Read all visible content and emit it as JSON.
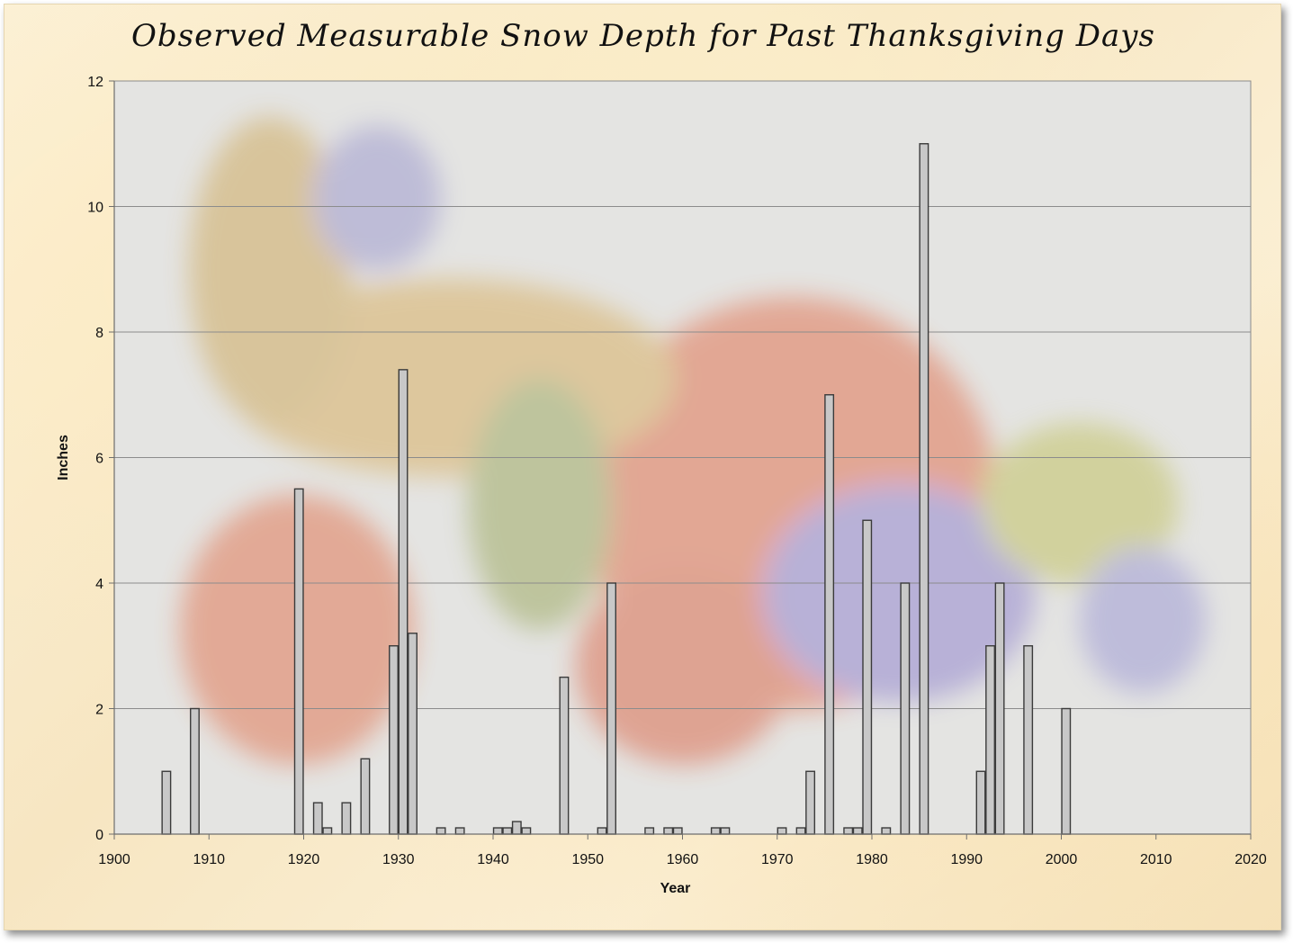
{
  "chart_data": {
    "type": "bar",
    "title": "Observed Measurable Snow Depth for Past Thanksgiving Days",
    "xlabel": "Year",
    "ylabel": "Inches",
    "xlim": [
      1900,
      2020
    ],
    "ylim": [
      0,
      12
    ],
    "x_ticks": [
      1900,
      1910,
      1920,
      1930,
      1940,
      1950,
      1960,
      1970,
      1980,
      1990,
      2000,
      2010,
      2020
    ],
    "y_ticks": [
      0,
      2,
      4,
      6,
      8,
      10,
      12
    ],
    "grid": "horizontal",
    "legend": "none",
    "bar_fill": "#c8c8c8",
    "bar_stroke": "#3a3a3a",
    "plot_background": "#e4e4e2",
    "x": [
      1905,
      1908,
      1919,
      1921,
      1922,
      1924,
      1926,
      1929,
      1930,
      1931,
      1934,
      1936,
      1940,
      1941,
      1942,
      1943,
      1947,
      1951,
      1952,
      1956,
      1958,
      1959,
      1963,
      1964,
      1970,
      1972,
      1973,
      1975,
      1977,
      1978,
      1979,
      1981,
      1983,
      1985,
      1991,
      1992,
      1993,
      1996,
      2000
    ],
    "values": [
      1,
      2,
      5.5,
      0.5,
      0.1,
      0.5,
      1.2,
      3,
      7.4,
      3.2,
      0.1,
      0.1,
      0.1,
      0.1,
      0.2,
      0.1,
      2.5,
      0.1,
      4,
      0.1,
      0.1,
      0.1,
      0.1,
      0.1,
      0.1,
      0.1,
      1,
      7,
      0.1,
      0.1,
      5,
      0.1,
      4,
      11,
      1,
      3,
      4,
      3,
      2
    ]
  }
}
